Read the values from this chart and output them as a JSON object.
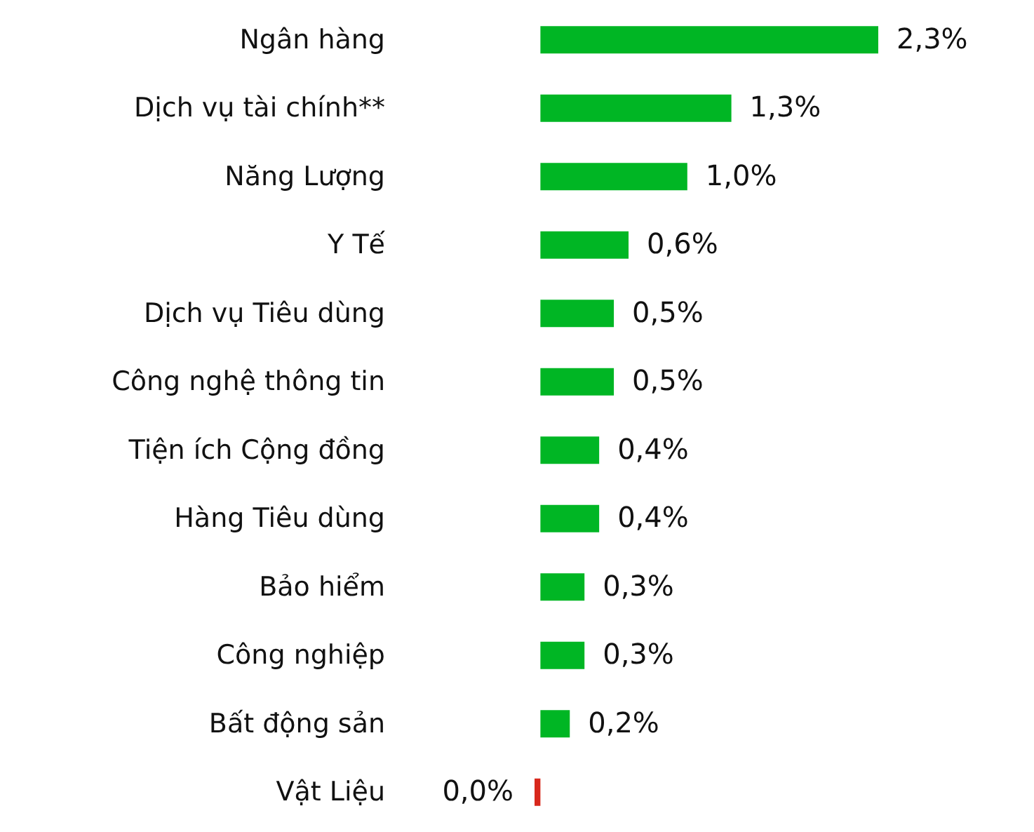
{
  "chart_data": {
    "type": "bar",
    "orientation": "horizontal",
    "categories": [
      "Ngân hàng",
      "Dịch vụ tài chính**",
      "Năng Lượng",
      "Y Tế",
      "Dịch vụ Tiêu dùng",
      "Công nghệ thông tin",
      "Tiện ích Cộng đồng",
      "Hàng Tiêu dùng",
      "Bảo hiểm",
      "Công nghiệp",
      "Bất động sản",
      "Vật Liệu"
    ],
    "values": [
      2.3,
      1.3,
      1.0,
      0.6,
      0.5,
      0.5,
      0.4,
      0.4,
      0.3,
      0.3,
      0.2,
      -0.04
    ],
    "value_labels": [
      "2,3%",
      "1,3%",
      "1,0%",
      "0,6%",
      "0,5%",
      "0,5%",
      "0,4%",
      "0,4%",
      "0,3%",
      "0,3%",
      "0,2%",
      "0,0%"
    ],
    "colors": [
      "#00b624",
      "#00b624",
      "#00b624",
      "#00b624",
      "#00b624",
      "#00b624",
      "#00b624",
      "#00b624",
      "#00b624",
      "#00b624",
      "#00b624",
      "#d8281c"
    ],
    "tick_labels": "y"
  }
}
